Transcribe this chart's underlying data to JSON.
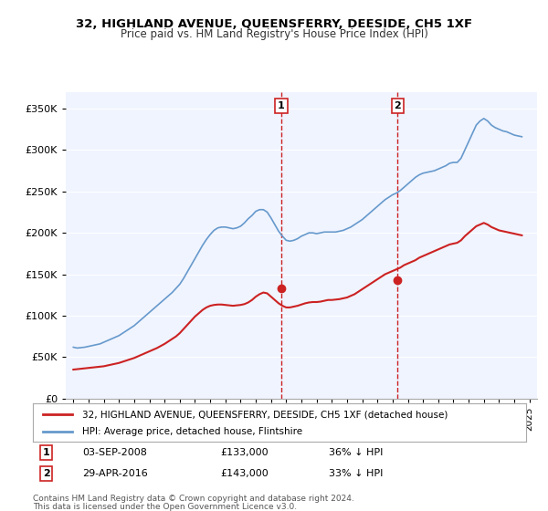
{
  "title": "32, HIGHLAND AVENUE, QUEENSFERRY, DEESIDE, CH5 1XF",
  "subtitle": "Price paid vs. HM Land Registry's House Price Index (HPI)",
  "ylabel_ticks": [
    "£0",
    "£50K",
    "£100K",
    "£150K",
    "£200K",
    "£250K",
    "£300K",
    "£350K"
  ],
  "ytick_values": [
    0,
    50000,
    100000,
    150000,
    200000,
    250000,
    300000,
    350000
  ],
  "ylim": [
    0,
    370000
  ],
  "xlim_start": 1994.5,
  "xlim_end": 2025.5,
  "xtick_years": [
    1995,
    1996,
    1997,
    1998,
    1999,
    2000,
    2001,
    2002,
    2003,
    2004,
    2005,
    2006,
    2007,
    2008,
    2009,
    2010,
    2011,
    2012,
    2013,
    2014,
    2015,
    2016,
    2017,
    2018,
    2019,
    2020,
    2021,
    2022,
    2023,
    2024,
    2025
  ],
  "hpi_color": "#6699cc",
  "price_color": "#cc2222",
  "marker_color": "#cc2222",
  "vline_color": "#cc2222",
  "annotation_bg": "#ffffff",
  "annotation_border": "#cc2222",
  "legend_label_price": "32, HIGHLAND AVENUE, QUEENSFERRY, DEESIDE, CH5 1XF (detached house)",
  "legend_label_hpi": "HPI: Average price, detached house, Flintshire",
  "sale1_date": "03-SEP-2008",
  "sale1_price": "£133,000",
  "sale1_pct": "36% ↓ HPI",
  "sale1_x": 2008.67,
  "sale1_y": 133000,
  "sale2_date": "29-APR-2016",
  "sale2_price": "£143,000",
  "sale2_pct": "33% ↓ HPI",
  "sale2_x": 2016.33,
  "sale2_y": 143000,
  "footer1": "Contains HM Land Registry data © Crown copyright and database right 2024.",
  "footer2": "This data is licensed under the Open Government Licence v3.0.",
  "hpi_data_x": [
    1995.0,
    1995.25,
    1995.5,
    1995.75,
    1996.0,
    1996.25,
    1996.5,
    1996.75,
    1997.0,
    1997.25,
    1997.5,
    1997.75,
    1998.0,
    1998.25,
    1998.5,
    1998.75,
    1999.0,
    1999.25,
    1999.5,
    1999.75,
    2000.0,
    2000.25,
    2000.5,
    2000.75,
    2001.0,
    2001.25,
    2001.5,
    2001.75,
    2002.0,
    2002.25,
    2002.5,
    2002.75,
    2003.0,
    2003.25,
    2003.5,
    2003.75,
    2004.0,
    2004.25,
    2004.5,
    2004.75,
    2005.0,
    2005.25,
    2005.5,
    2005.75,
    2006.0,
    2006.25,
    2006.5,
    2006.75,
    2007.0,
    2007.25,
    2007.5,
    2007.75,
    2008.0,
    2008.25,
    2008.5,
    2008.75,
    2009.0,
    2009.25,
    2009.5,
    2009.75,
    2010.0,
    2010.25,
    2010.5,
    2010.75,
    2011.0,
    2011.25,
    2011.5,
    2011.75,
    2012.0,
    2012.25,
    2012.5,
    2012.75,
    2013.0,
    2013.25,
    2013.5,
    2013.75,
    2014.0,
    2014.25,
    2014.5,
    2014.75,
    2015.0,
    2015.25,
    2015.5,
    2015.75,
    2016.0,
    2016.25,
    2016.5,
    2016.75,
    2017.0,
    2017.25,
    2017.5,
    2017.75,
    2018.0,
    2018.25,
    2018.5,
    2018.75,
    2019.0,
    2019.25,
    2019.5,
    2019.75,
    2020.0,
    2020.25,
    2020.5,
    2020.75,
    2021.0,
    2021.25,
    2021.5,
    2021.75,
    2022.0,
    2022.25,
    2022.5,
    2022.75,
    2023.0,
    2023.25,
    2023.5,
    2023.75,
    2024.0,
    2024.25,
    2024.5
  ],
  "hpi_data_y": [
    62000,
    61000,
    61500,
    62000,
    63000,
    64000,
    65000,
    66000,
    68000,
    70000,
    72000,
    74000,
    76000,
    79000,
    82000,
    85000,
    88000,
    92000,
    96000,
    100000,
    104000,
    108000,
    112000,
    116000,
    120000,
    124000,
    128000,
    133000,
    138000,
    145000,
    153000,
    161000,
    169000,
    177000,
    185000,
    192000,
    198000,
    203000,
    206000,
    207000,
    207000,
    206000,
    205000,
    206000,
    208000,
    212000,
    217000,
    221000,
    226000,
    228000,
    228000,
    225000,
    218000,
    210000,
    202000,
    196000,
    191000,
    190000,
    191000,
    193000,
    196000,
    198000,
    200000,
    200000,
    199000,
    200000,
    201000,
    201000,
    201000,
    201000,
    202000,
    203000,
    205000,
    207000,
    210000,
    213000,
    216000,
    220000,
    224000,
    228000,
    232000,
    236000,
    240000,
    243000,
    246000,
    248000,
    251000,
    255000,
    259000,
    263000,
    267000,
    270000,
    272000,
    273000,
    274000,
    275000,
    277000,
    279000,
    281000,
    284000,
    285000,
    285000,
    290000,
    300000,
    310000,
    320000,
    330000,
    335000,
    338000,
    335000,
    330000,
    327000,
    325000,
    323000,
    322000,
    320000,
    318000,
    317000,
    316000
  ],
  "price_data_x": [
    1995.0,
    1995.25,
    1995.5,
    1995.75,
    1996.0,
    1996.25,
    1996.5,
    1996.75,
    1997.0,
    1997.25,
    1997.5,
    1997.75,
    1998.0,
    1998.25,
    1998.5,
    1998.75,
    1999.0,
    1999.25,
    1999.5,
    1999.75,
    2000.0,
    2000.25,
    2000.5,
    2000.75,
    2001.0,
    2001.25,
    2001.5,
    2001.75,
    2002.0,
    2002.25,
    2002.5,
    2002.75,
    2003.0,
    2003.25,
    2003.5,
    2003.75,
    2004.0,
    2004.25,
    2004.5,
    2004.75,
    2005.0,
    2005.25,
    2005.5,
    2005.75,
    2006.0,
    2006.25,
    2006.5,
    2006.75,
    2007.0,
    2007.25,
    2007.5,
    2007.75,
    2008.0,
    2008.25,
    2008.5,
    2008.75,
    2009.0,
    2009.25,
    2009.5,
    2009.75,
    2010.0,
    2010.25,
    2010.5,
    2010.75,
    2011.0,
    2011.25,
    2011.5,
    2011.75,
    2012.0,
    2012.25,
    2012.5,
    2012.75,
    2013.0,
    2013.25,
    2013.5,
    2013.75,
    2014.0,
    2014.25,
    2014.5,
    2014.75,
    2015.0,
    2015.25,
    2015.5,
    2015.75,
    2016.0,
    2016.25,
    2016.5,
    2016.75,
    2017.0,
    2017.25,
    2017.5,
    2017.75,
    2018.0,
    2018.25,
    2018.5,
    2018.75,
    2019.0,
    2019.25,
    2019.5,
    2019.75,
    2020.0,
    2020.25,
    2020.5,
    2020.75,
    2021.0,
    2021.25,
    2021.5,
    2021.75,
    2022.0,
    2022.25,
    2022.5,
    2022.75,
    2023.0,
    2023.25,
    2023.5,
    2023.75,
    2024.0,
    2024.25,
    2024.5
  ],
  "price_data_y": [
    35000,
    35500,
    36000,
    36500,
    37000,
    37500,
    38000,
    38500,
    39000,
    40000,
    41000,
    42000,
    43000,
    44500,
    46000,
    47500,
    49000,
    51000,
    53000,
    55000,
    57000,
    59000,
    61000,
    63500,
    66000,
    69000,
    72000,
    75000,
    79000,
    84000,
    89000,
    94000,
    99000,
    103000,
    107000,
    110000,
    112000,
    113000,
    113500,
    113500,
    113000,
    112500,
    112000,
    112500,
    113000,
    114000,
    116000,
    119000,
    123000,
    126000,
    128000,
    127000,
    123000,
    119000,
    115000,
    112000,
    110000,
    110000,
    111000,
    112000,
    113500,
    115000,
    116000,
    116500,
    116500,
    117000,
    118000,
    119000,
    119000,
    119500,
    120000,
    121000,
    122000,
    124000,
    126000,
    129000,
    132000,
    135000,
    138000,
    141000,
    144000,
    147000,
    150000,
    152000,
    154000,
    156000,
    158000,
    161000,
    163000,
    165000,
    167000,
    170000,
    172000,
    174000,
    176000,
    178000,
    180000,
    182000,
    184000,
    186000,
    187000,
    188000,
    191000,
    196000,
    200000,
    204000,
    208000,
    210000,
    212000,
    210000,
    207000,
    205000,
    203000,
    202000,
    201000,
    200000,
    199000,
    198000,
    197000
  ]
}
